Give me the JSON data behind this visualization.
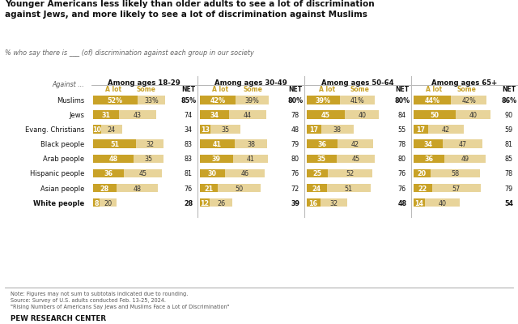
{
  "title": "Younger Americans less likely than older adults to see a lot of discrimination\nagainst Jews, and more likely to see a lot of discrimination against Muslims",
  "subtitle": "% who say there is ___ (of) discrimination against each group in our society",
  "age_groups": [
    "Among ages 18-29",
    "Among ages 30-49",
    "Among ages 50-64",
    "Among ages 65+"
  ],
  "categories": [
    "Muslims",
    "Jews",
    "Evang. Christians",
    "Black people",
    "Arab people",
    "Hispanic people",
    "Asian people",
    "White people"
  ],
  "data": {
    "18-29": {
      "a_lot": [
        52,
        31,
        10,
        51,
        48,
        36,
        28,
        8
      ],
      "some": [
        33,
        43,
        24,
        32,
        35,
        45,
        48,
        20
      ],
      "net": [
        85,
        74,
        34,
        83,
        83,
        81,
        76,
        28
      ]
    },
    "30-49": {
      "a_lot": [
        42,
        34,
        13,
        41,
        39,
        30,
        21,
        12
      ],
      "some": [
        39,
        44,
        35,
        38,
        41,
        46,
        50,
        26
      ],
      "net": [
        80,
        78,
        48,
        79,
        80,
        76,
        72,
        39
      ]
    },
    "50-64": {
      "a_lot": [
        39,
        45,
        17,
        36,
        35,
        25,
        24,
        16
      ],
      "some": [
        41,
        40,
        38,
        42,
        45,
        52,
        51,
        32
      ],
      "net": [
        80,
        84,
        55,
        78,
        80,
        76,
        76,
        48
      ]
    },
    "65+": {
      "a_lot": [
        44,
        50,
        17,
        34,
        36,
        20,
        22,
        14
      ],
      "some": [
        42,
        40,
        42,
        47,
        49,
        58,
        57,
        40
      ],
      "net": [
        86,
        90,
        59,
        81,
        85,
        78,
        79,
        54
      ]
    }
  },
  "color_a_lot": "#C9A227",
  "color_some": "#E8D49A",
  "background": "#FFFFFF",
  "note": "Note: Figures may not sum to subtotals indicated due to rounding.\nSource: Survey of U.S. adults conducted Feb. 13-25, 2024.\n\"Rising Numbers of Americans Say Jews and Muslims Face a Lot of Discrimination\"",
  "footer": "PEW RESEARCH CENTER"
}
